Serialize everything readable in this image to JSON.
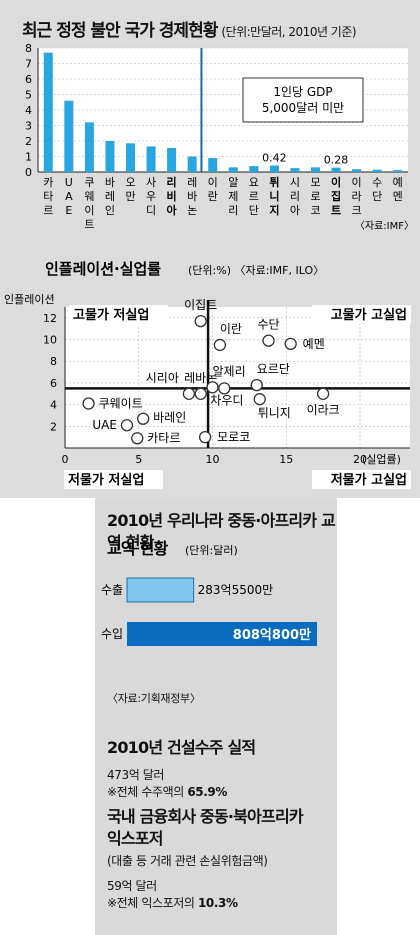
{
  "chart_data": [
    {
      "type": "bar",
      "title": "최근 정정 불안 국가 경제현황",
      "subtitle": "(단위:만달러, 2010년 기준)",
      "categories": [
        "카타르",
        "UAE",
        "쿠웨이트",
        "바레인",
        "오만",
        "사우디",
        "리비아",
        "레바논",
        "이란",
        "알제리",
        "요르단",
        "튀니지",
        "시리아",
        "모로코",
        "이집트",
        "이라크",
        "수단",
        "예멘"
      ],
      "values": [
        7.7,
        4.6,
        3.2,
        2.0,
        1.85,
        1.65,
        1.55,
        1.0,
        0.9,
        0.3,
        0.38,
        0.42,
        0.25,
        0.3,
        0.28,
        0.18,
        0.15,
        0.12
      ],
      "ylim": [
        0,
        8
      ],
      "yticks": [
        "0",
        "1",
        "2",
        "3",
        "4",
        "5",
        "6",
        "7",
        "8"
      ],
      "data_labels": [
        {
          "category": "튀니지",
          "text": "0.42"
        },
        {
          "category": "이집트",
          "text": "0.28"
        }
      ],
      "bold_categories": [
        "리비아",
        "튀니지",
        "이집트"
      ],
      "annotation": [
        "1인당 GDP",
        "5,000달러 미만"
      ],
      "source": "〈자료:IMF〉",
      "bar_color": "#29a5e0"
    },
    {
      "type": "scatter",
      "title": "인플레이션·실업률",
      "subtitle": "(단위:%) 〈자료:IMF, ILO〉",
      "ylabel": "인플레이션",
      "xlabel": "(실업률)",
      "xlim": [
        0,
        20
      ],
      "ylim": [
        0,
        13
      ],
      "xticks": [
        "0",
        "5",
        "10",
        "15",
        "20"
      ],
      "yticks": [
        "2",
        "4",
        "6",
        "8",
        "10",
        "12"
      ],
      "quadrants": [
        "고물가 저실업",
        "고물가 고실업",
        "저물가 저실업",
        "저물가 고실업"
      ],
      "points": [
        {
          "name": "이집트",
          "x": 9.2,
          "y": 11.7
        },
        {
          "name": "이란",
          "x": 10.5,
          "y": 9.5
        },
        {
          "name": "수단",
          "x": 13.8,
          "y": 9.9
        },
        {
          "name": "예멘",
          "x": 15.3,
          "y": 9.6
        },
        {
          "name": "시리아",
          "x": 8.4,
          "y": 5.0
        },
        {
          "name": "레바논",
          "x": 9.2,
          "y": 5.0
        },
        {
          "name": "알제리",
          "x": 10.0,
          "y": 5.6
        },
        {
          "name": "요르단",
          "x": 13.0,
          "y": 5.8
        },
        {
          "name": "차우디",
          "x": 10.8,
          "y": 5.5
        },
        {
          "name": "튀니지",
          "x": 13.2,
          "y": 4.5
        },
        {
          "name": "이라크",
          "x": 17.5,
          "y": 5.0
        },
        {
          "name": "쿠웨이트",
          "x": 1.6,
          "y": 4.1
        },
        {
          "name": "바레인",
          "x": 5.3,
          "y": 2.7
        },
        {
          "name": "UAE",
          "x": 4.2,
          "y": 2.1
        },
        {
          "name": "카타르",
          "x": 4.9,
          "y": 0.9
        },
        {
          "name": "모로코",
          "x": 9.5,
          "y": 1.0
        }
      ]
    },
    {
      "type": "bar",
      "title": "2010년 우리나라 중동·아프리카 교역 현황",
      "subtitle": "(단위:달러)",
      "categories": [
        "수출",
        "수입"
      ],
      "values_text": [
        "283억5500만",
        "808억800만"
      ],
      "values": [
        28355000000,
        80808000000
      ],
      "colors": [
        "#7cc6ee",
        "#0a6cc1"
      ],
      "source": "〈자료:기획재정부〉"
    }
  ],
  "construction": {
    "title": "2010년 건설수주 실적",
    "amount": "473억 달러",
    "share_prefix": "※전체 수주액의 ",
    "share_value": "65.9%"
  },
  "exposure": {
    "title_line1": "국내 금융회사 중동·북아프리카",
    "title_line2": "익스포저",
    "note": "(대출 등 거래 관련 손실위험금액)",
    "amount": "59억 달러",
    "share_prefix": "※전체 익스포저의 ",
    "share_value": "10.3%"
  }
}
